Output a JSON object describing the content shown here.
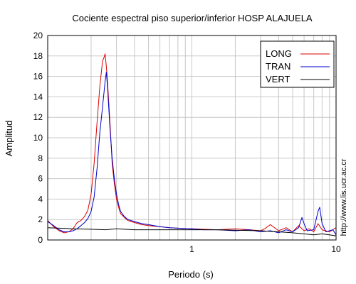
{
  "chart_data": {
    "type": "line",
    "title": "Cociente espectral piso superior/inferior  HOSP ALAJUELA",
    "xlabel": "Periodo (s)",
    "ylabel": "Amplitud",
    "xscale": "log",
    "xlim": [
      0.1,
      10
    ],
    "ylim": [
      0,
      20
    ],
    "yticks": [
      0,
      2,
      4,
      6,
      8,
      10,
      12,
      14,
      16,
      18,
      20
    ],
    "xticks_labeled": [
      1,
      10
    ],
    "grid": true,
    "legend_position": "top-right",
    "side_text": "http://www.lis.ucr.ac.cr",
    "series": [
      {
        "name": "LONG",
        "color": "#dd0000",
        "x": [
          0.1,
          0.11,
          0.12,
          0.13,
          0.14,
          0.15,
          0.16,
          0.17,
          0.18,
          0.19,
          0.2,
          0.21,
          0.22,
          0.23,
          0.24,
          0.245,
          0.25,
          0.255,
          0.26,
          0.265,
          0.27,
          0.275,
          0.28,
          0.29,
          0.3,
          0.31,
          0.32,
          0.34,
          0.36,
          0.4,
          0.45,
          0.5,
          0.6,
          0.7,
          0.8,
          1.0,
          1.2,
          1.5,
          2.0,
          2.5,
          3.0,
          3.2,
          3.5,
          4.0,
          4.5,
          5.0,
          5.5,
          6.0,
          6.5,
          7.0,
          7.5,
          8.0,
          9.0,
          10.0
        ],
        "y": [
          1.9,
          1.3,
          0.9,
          0.7,
          0.8,
          1.1,
          1.7,
          1.9,
          2.3,
          2.9,
          4.5,
          7.5,
          11.5,
          15.0,
          17.5,
          17.8,
          18.2,
          17.0,
          15.5,
          13.5,
          11.5,
          9.5,
          7.5,
          5.5,
          4.0,
          3.2,
          2.6,
          2.2,
          1.9,
          1.7,
          1.5,
          1.4,
          1.3,
          1.2,
          1.15,
          1.1,
          1.05,
          1.0,
          1.1,
          1.0,
          0.9,
          1.1,
          1.5,
          0.9,
          1.2,
          0.8,
          1.4,
          0.9,
          1.1,
          0.8,
          1.6,
          1.0,
          0.8,
          1.2
        ]
      },
      {
        "name": "TRAN",
        "color": "#0000cc",
        "x": [
          0.1,
          0.11,
          0.12,
          0.13,
          0.14,
          0.15,
          0.16,
          0.17,
          0.18,
          0.19,
          0.2,
          0.21,
          0.22,
          0.23,
          0.24,
          0.25,
          0.255,
          0.26,
          0.265,
          0.27,
          0.28,
          0.29,
          0.3,
          0.31,
          0.32,
          0.34,
          0.36,
          0.4,
          0.45,
          0.5,
          0.6,
          0.7,
          0.8,
          1.0,
          1.2,
          1.5,
          2.0,
          2.5,
          3.0,
          3.5,
          4.0,
          4.5,
          5.0,
          5.5,
          5.8,
          6.0,
          6.3,
          7.0,
          7.5,
          7.7,
          8.0,
          8.5,
          9.0,
          9.5,
          10.0
        ],
        "y": [
          1.8,
          1.4,
          1.0,
          0.8,
          0.8,
          0.9,
          1.1,
          1.4,
          1.7,
          2.1,
          2.8,
          4.2,
          7.0,
          10.5,
          13.0,
          15.5,
          16.4,
          15.0,
          13.0,
          11.0,
          8.0,
          6.0,
          4.5,
          3.5,
          2.8,
          2.3,
          2.0,
          1.8,
          1.6,
          1.5,
          1.3,
          1.2,
          1.15,
          1.1,
          1.0,
          1.0,
          0.9,
          1.0,
          0.8,
          0.9,
          0.7,
          1.0,
          0.8,
          1.2,
          2.2,
          1.6,
          0.9,
          1.0,
          2.8,
          3.2,
          1.6,
          0.8,
          0.9,
          1.0,
          0.5
        ]
      },
      {
        "name": "VERT",
        "color": "#000000",
        "x": [
          0.1,
          0.12,
          0.15,
          0.2,
          0.25,
          0.3,
          0.4,
          0.5,
          0.7,
          1.0,
          1.5,
          2.0,
          3.0,
          4.0,
          5.0,
          6.0,
          7.0,
          8.0,
          9.0,
          10.0
        ],
        "y": [
          1.2,
          1.15,
          1.1,
          1.05,
          1.0,
          1.1,
          1.0,
          1.0,
          1.0,
          1.0,
          1.0,
          0.95,
          0.9,
          0.8,
          0.7,
          0.6,
          0.5,
          0.6,
          0.5,
          0.4
        ]
      }
    ]
  }
}
